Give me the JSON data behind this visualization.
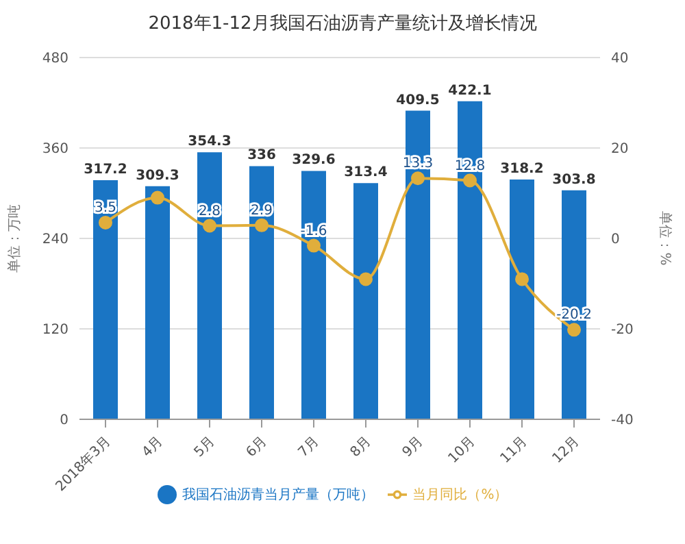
{
  "chart_data": {
    "type": "bar",
    "title": "2018年1-12月我国石油沥青产量统计及增长情况",
    "categories": [
      "2018年3月",
      "4月",
      "5月",
      "6月",
      "7月",
      "8月",
      "9月",
      "10月",
      "11月",
      "12月"
    ],
    "series": [
      {
        "name": "我国石油沥青当月产量（万吨）",
        "color": "#1a75c4",
        "values": [
          317.2,
          309.3,
          354.3,
          336,
          329.6,
          313.4,
          409.5,
          422.1,
          318.2,
          303.8
        ],
        "data_labels": true
      },
      {
        "name": "当月同比（%）",
        "type": "line",
        "axis": "y2",
        "color": "#e0ae3c",
        "marker": "circle",
        "values": [
          3.5,
          9,
          2.8,
          2.9,
          -1.6,
          -9,
          13.3,
          12.8,
          -9,
          -20.2
        ],
        "value_labels": [
          "3.5",
          null,
          "2.8",
          "2.9",
          "-1.6",
          null,
          "13.3",
          "12.8",
          null,
          "-20.2"
        ]
      }
    ],
    "ylabel": "单位：万吨",
    "y2label": "单位：%",
    "ylim": [
      0,
      480
    ],
    "yticks": [
      0,
      120,
      240,
      360,
      480
    ],
    "y2lim": [
      -40,
      40
    ],
    "y2ticks": [
      -40,
      -20,
      0,
      20,
      40
    ],
    "grid": "y",
    "legend": "bottom"
  }
}
